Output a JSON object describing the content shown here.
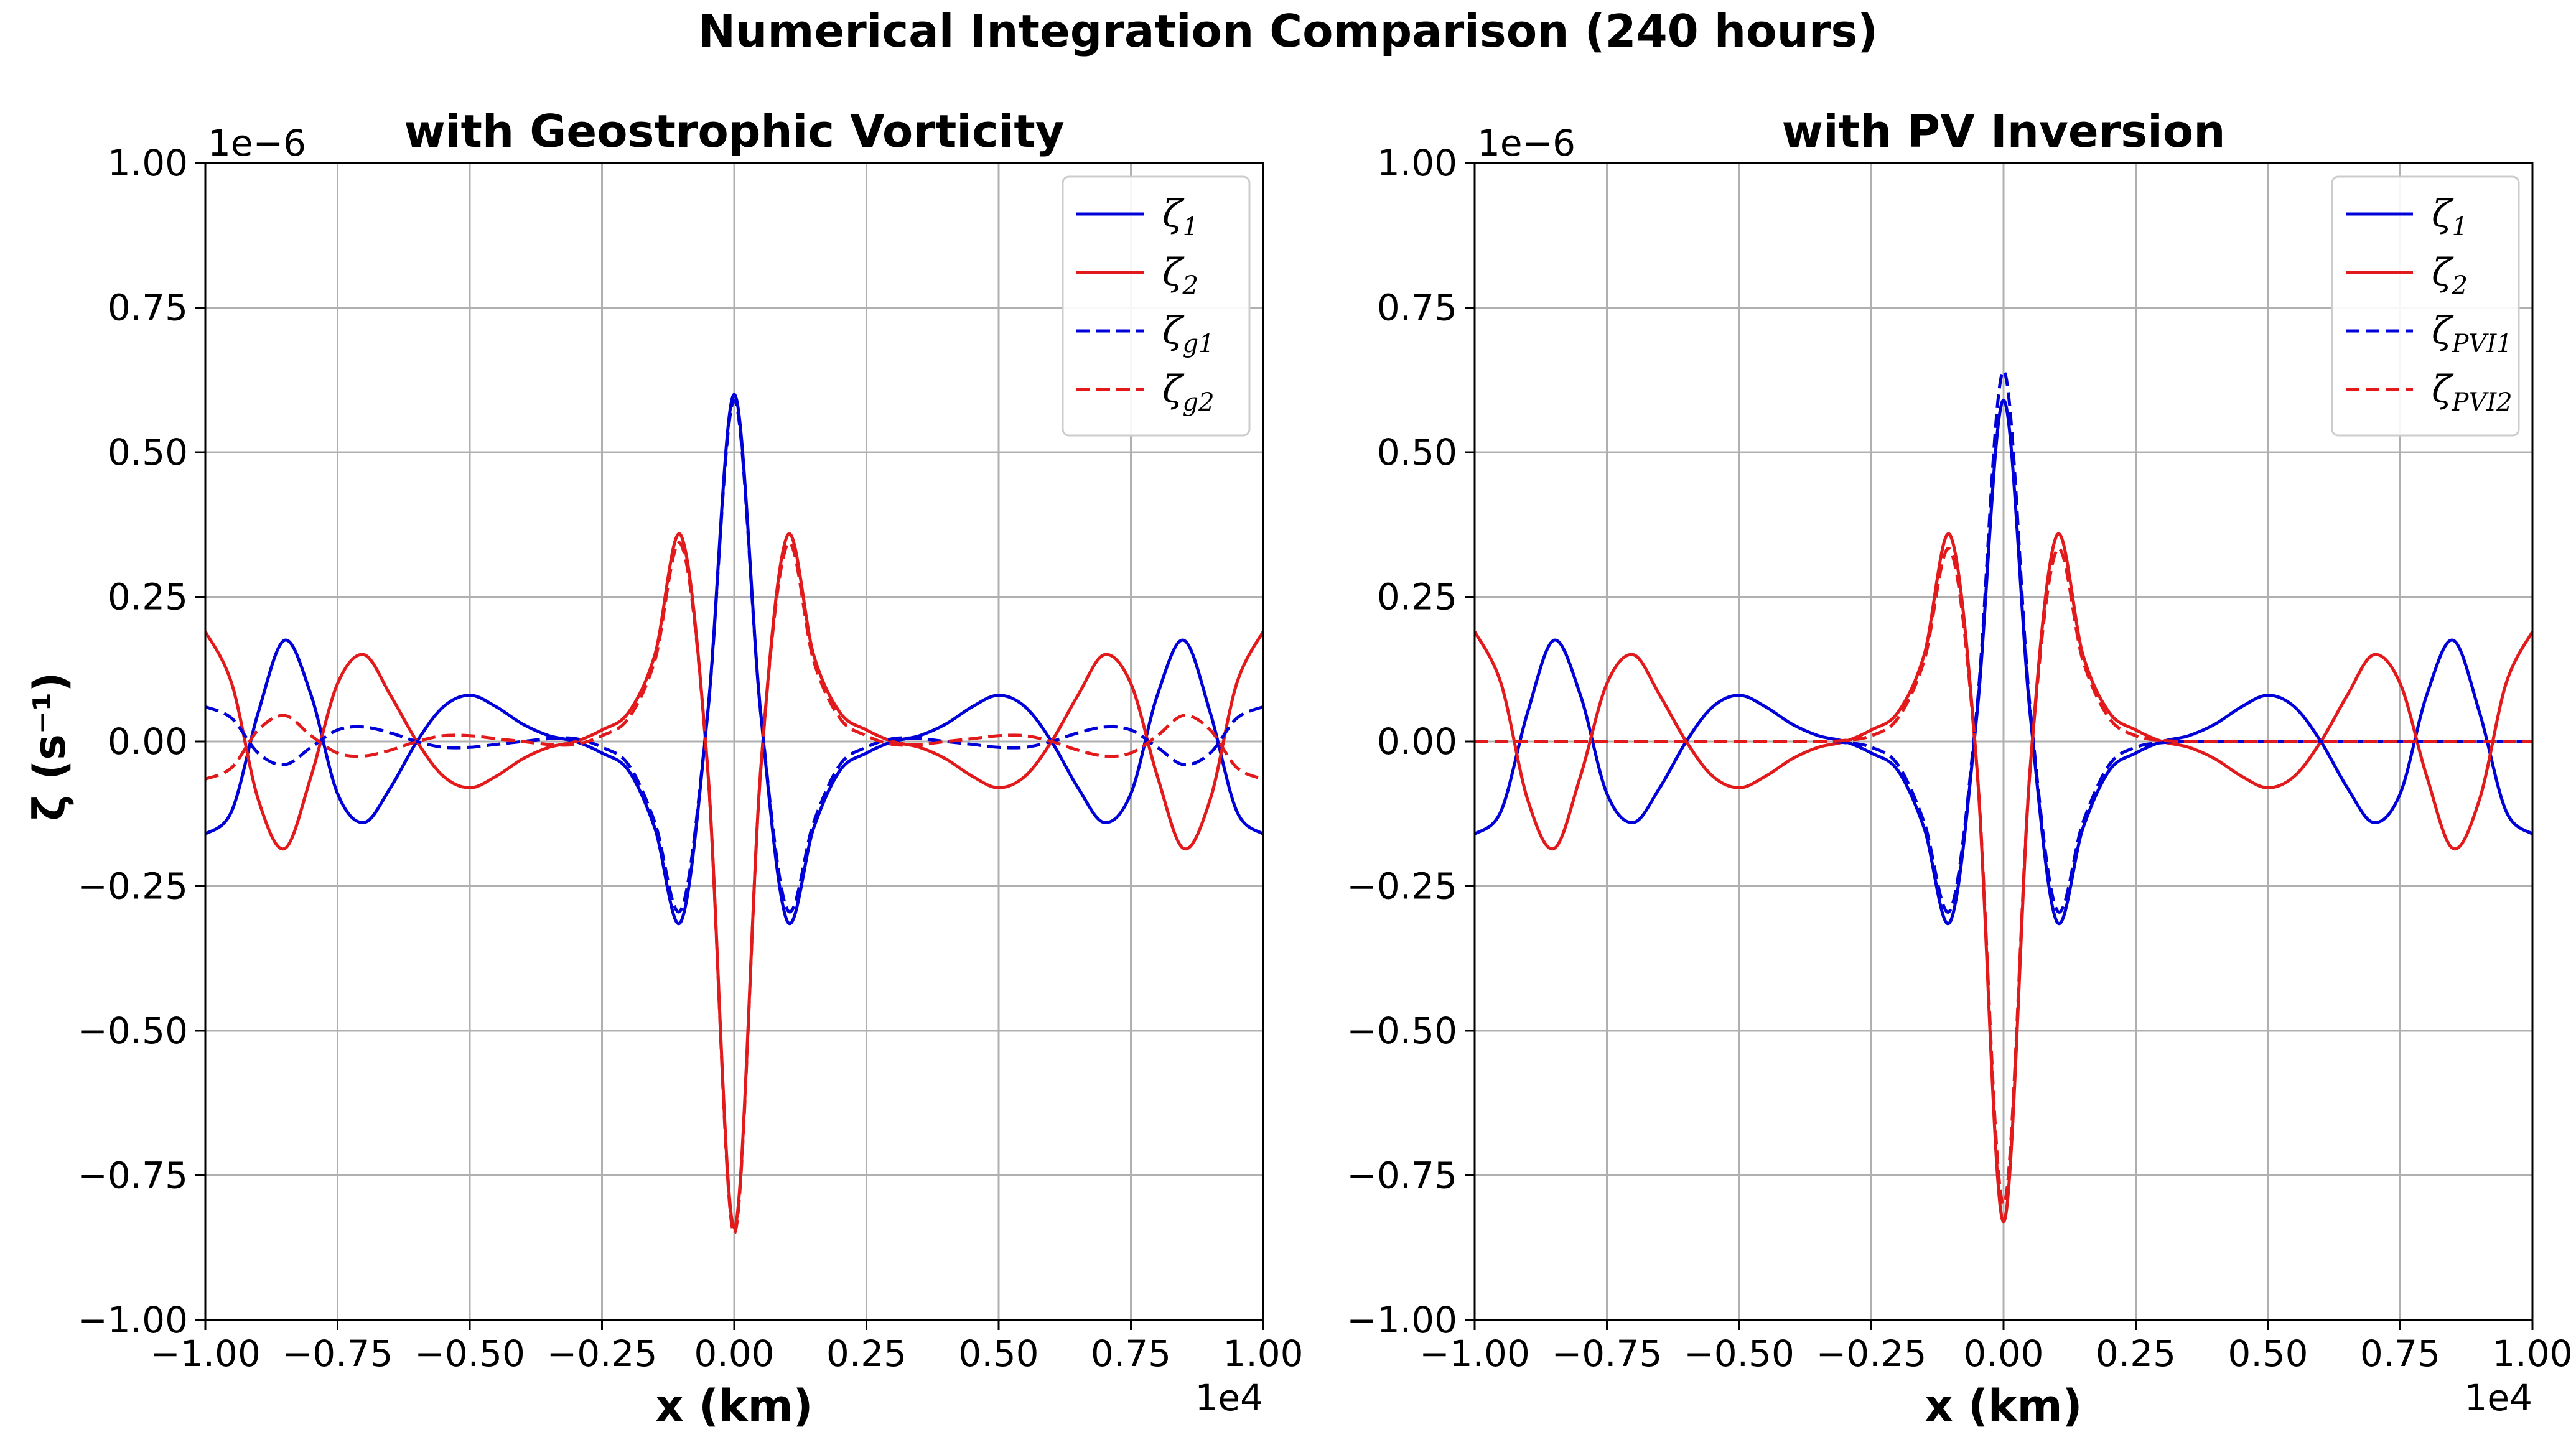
{
  "figure": {
    "title": "Numerical Integration Comparison (240 hours)",
    "ylabel": "ζ (s⁻¹)"
  },
  "colors": {
    "series1": "#0000d8",
    "series2": "#e31a1c",
    "grid": "#b0b0b0"
  },
  "chart_data": [
    {
      "type": "line",
      "title": "with Geostrophic Vorticity",
      "xlabel": "x (km)",
      "ylabel": "ζ (s⁻¹)",
      "x_offset_label": "1e4",
      "y_offset_label": "1e−6",
      "xlim": [
        -1.0,
        1.0
      ],
      "ylim": [
        -1.0,
        1.0
      ],
      "xticks": [
        "−1.00",
        "−0.75",
        "−0.50",
        "−0.25",
        "0.00",
        "0.25",
        "0.50",
        "0.75",
        "1.00"
      ],
      "yticks": [
        "1.00",
        "0.75",
        "0.50",
        "0.25",
        "0.00",
        "−0.25",
        "−0.50",
        "−0.75",
        "−1.00"
      ],
      "grid": true,
      "legend_position": "top-right",
      "x": [
        -1.0,
        -0.95,
        -0.9,
        -0.85,
        -0.8,
        -0.75,
        -0.7,
        -0.65,
        -0.6,
        -0.55,
        -0.5,
        -0.45,
        -0.4,
        -0.35,
        -0.3,
        -0.25,
        -0.2,
        -0.15,
        -0.1,
        -0.05,
        0.0,
        0.05,
        0.1,
        0.15,
        0.2,
        0.25,
        0.3,
        0.35,
        0.4,
        0.45,
        0.5,
        0.55,
        0.6,
        0.65,
        0.7,
        0.75,
        0.8,
        0.85,
        0.9,
        0.95,
        1.0
      ],
      "series": [
        {
          "name": "ζ",
          "sub": "1",
          "color": "series1",
          "dash": false,
          "values": [
            -0.16,
            -0.12,
            0.05,
            0.175,
            0.08,
            -0.09,
            -0.14,
            -0.08,
            0.0,
            0.06,
            0.08,
            0.06,
            0.03,
            0.01,
            0.0,
            -0.02,
            -0.05,
            -0.15,
            -0.31,
            0.05,
            0.6,
            0.05,
            -0.31,
            -0.15,
            -0.05,
            -0.02,
            0.0,
            0.01,
            0.03,
            0.06,
            0.08,
            0.06,
            0.0,
            -0.08,
            -0.14,
            -0.09,
            0.08,
            0.175,
            0.05,
            -0.12,
            -0.16
          ]
        },
        {
          "name": "ζ",
          "sub": "2",
          "color": "series2",
          "dash": false,
          "values": [
            0.19,
            0.1,
            -0.1,
            -0.185,
            -0.06,
            0.1,
            0.15,
            0.08,
            0.0,
            -0.06,
            -0.08,
            -0.06,
            -0.03,
            -0.01,
            0.0,
            0.02,
            0.05,
            0.15,
            0.355,
            -0.05,
            -0.84,
            -0.05,
            0.355,
            0.15,
            0.05,
            0.02,
            0.0,
            -0.01,
            -0.03,
            -0.06,
            -0.08,
            -0.06,
            0.0,
            0.08,
            0.15,
            0.1,
            -0.06,
            -0.185,
            -0.1,
            0.1,
            0.19
          ]
        },
        {
          "name": "ζ",
          "sub": "g1",
          "color": "series1",
          "dash": true,
          "values": [
            0.06,
            0.04,
            -0.02,
            -0.04,
            -0.01,
            0.02,
            0.025,
            0.015,
            0.0,
            -0.01,
            -0.01,
            -0.005,
            0.0,
            0.005,
            0.005,
            -0.01,
            -0.04,
            -0.14,
            -0.29,
            0.05,
            0.59,
            0.05,
            -0.29,
            -0.14,
            -0.04,
            -0.01,
            0.005,
            0.005,
            0.0,
            -0.005,
            -0.01,
            -0.01,
            0.0,
            0.015,
            0.025,
            0.02,
            -0.01,
            -0.04,
            -0.02,
            0.04,
            0.06
          ]
        },
        {
          "name": "ζ",
          "sub": "g2",
          "color": "series2",
          "dash": true,
          "values": [
            -0.065,
            -0.045,
            0.02,
            0.045,
            0.01,
            -0.02,
            -0.025,
            -0.015,
            0.0,
            0.01,
            0.01,
            0.005,
            0.0,
            -0.005,
            -0.005,
            0.01,
            0.04,
            0.14,
            0.34,
            -0.05,
            -0.85,
            -0.05,
            0.34,
            0.14,
            0.04,
            0.01,
            -0.005,
            -0.005,
            0.0,
            0.005,
            0.01,
            0.01,
            0.0,
            -0.015,
            -0.025,
            -0.02,
            0.01,
            0.045,
            0.02,
            -0.045,
            -0.065
          ]
        }
      ]
    },
    {
      "type": "line",
      "title": "with PV Inversion",
      "xlabel": "x (km)",
      "ylabel": "",
      "x_offset_label": "1e4",
      "y_offset_label": "1e−6",
      "xlim": [
        -1.0,
        1.0
      ],
      "ylim": [
        -1.0,
        1.0
      ],
      "xticks": [
        "−1.00",
        "−0.75",
        "−0.50",
        "−0.25",
        "0.00",
        "0.25",
        "0.50",
        "0.75",
        "1.00"
      ],
      "yticks": [
        "1.00",
        "0.75",
        "0.50",
        "0.25",
        "0.00",
        "−0.25",
        "−0.50",
        "−0.75",
        "−1.00"
      ],
      "grid": true,
      "legend_position": "top-right",
      "x": [
        -1.0,
        -0.95,
        -0.9,
        -0.85,
        -0.8,
        -0.75,
        -0.7,
        -0.65,
        -0.6,
        -0.55,
        -0.5,
        -0.45,
        -0.4,
        -0.35,
        -0.3,
        -0.25,
        -0.2,
        -0.15,
        -0.1,
        -0.05,
        0.0,
        0.05,
        0.1,
        0.15,
        0.2,
        0.25,
        0.3,
        0.35,
        0.4,
        0.45,
        0.5,
        0.55,
        0.6,
        0.65,
        0.7,
        0.75,
        0.8,
        0.85,
        0.9,
        0.95,
        1.0
      ],
      "series": [
        {
          "name": "ζ",
          "sub": "1",
          "color": "series1",
          "dash": false,
          "values": [
            -0.16,
            -0.12,
            0.05,
            0.175,
            0.08,
            -0.09,
            -0.14,
            -0.08,
            0.0,
            0.06,
            0.08,
            0.06,
            0.03,
            0.01,
            0.0,
            -0.02,
            -0.05,
            -0.15,
            -0.31,
            0.05,
            0.59,
            0.05,
            -0.31,
            -0.15,
            -0.05,
            -0.02,
            0.0,
            0.01,
            0.03,
            0.06,
            0.08,
            0.06,
            0.0,
            -0.08,
            -0.14,
            -0.09,
            0.08,
            0.175,
            0.05,
            -0.12,
            -0.16
          ]
        },
        {
          "name": "ζ",
          "sub": "2",
          "color": "series2",
          "dash": false,
          "values": [
            0.19,
            0.1,
            -0.1,
            -0.185,
            -0.06,
            0.1,
            0.15,
            0.08,
            0.0,
            -0.06,
            -0.08,
            -0.06,
            -0.03,
            -0.01,
            0.0,
            0.02,
            0.05,
            0.15,
            0.355,
            -0.05,
            -0.83,
            -0.05,
            0.355,
            0.15,
            0.05,
            0.02,
            0.0,
            -0.01,
            -0.03,
            -0.06,
            -0.08,
            -0.06,
            0.0,
            0.08,
            0.15,
            0.1,
            -0.06,
            -0.185,
            -0.1,
            0.1,
            0.19
          ]
        },
        {
          "name": "ζ",
          "sub": "PVI1",
          "color": "series1",
          "dash": true,
          "values": [
            0.0,
            0.0,
            0.0,
            0.0,
            0.0,
            0.0,
            0.0,
            0.0,
            0.0,
            0.0,
            0.0,
            0.0,
            0.0,
            0.0,
            -0.002,
            -0.01,
            -0.04,
            -0.14,
            -0.29,
            0.06,
            0.64,
            0.06,
            -0.29,
            -0.14,
            -0.04,
            -0.01,
            -0.002,
            0.0,
            0.0,
            0.0,
            0.0,
            0.0,
            0.0,
            0.0,
            0.0,
            0.0,
            0.0,
            0.0,
            0.0,
            0.0,
            0.0
          ]
        },
        {
          "name": "ζ",
          "sub": "PVI2",
          "color": "series2",
          "dash": true,
          "values": [
            0.0,
            0.0,
            0.0,
            0.0,
            0.0,
            0.0,
            0.0,
            0.0,
            0.0,
            0.0,
            0.0,
            0.0,
            0.0,
            0.0,
            0.002,
            0.01,
            0.04,
            0.14,
            0.33,
            -0.05,
            -0.8,
            -0.05,
            0.33,
            0.14,
            0.04,
            0.01,
            0.002,
            0.0,
            0.0,
            0.0,
            0.0,
            0.0,
            0.0,
            0.0,
            0.0,
            0.0,
            0.0,
            0.0,
            0.0,
            0.0,
            0.0
          ]
        }
      ]
    }
  ]
}
